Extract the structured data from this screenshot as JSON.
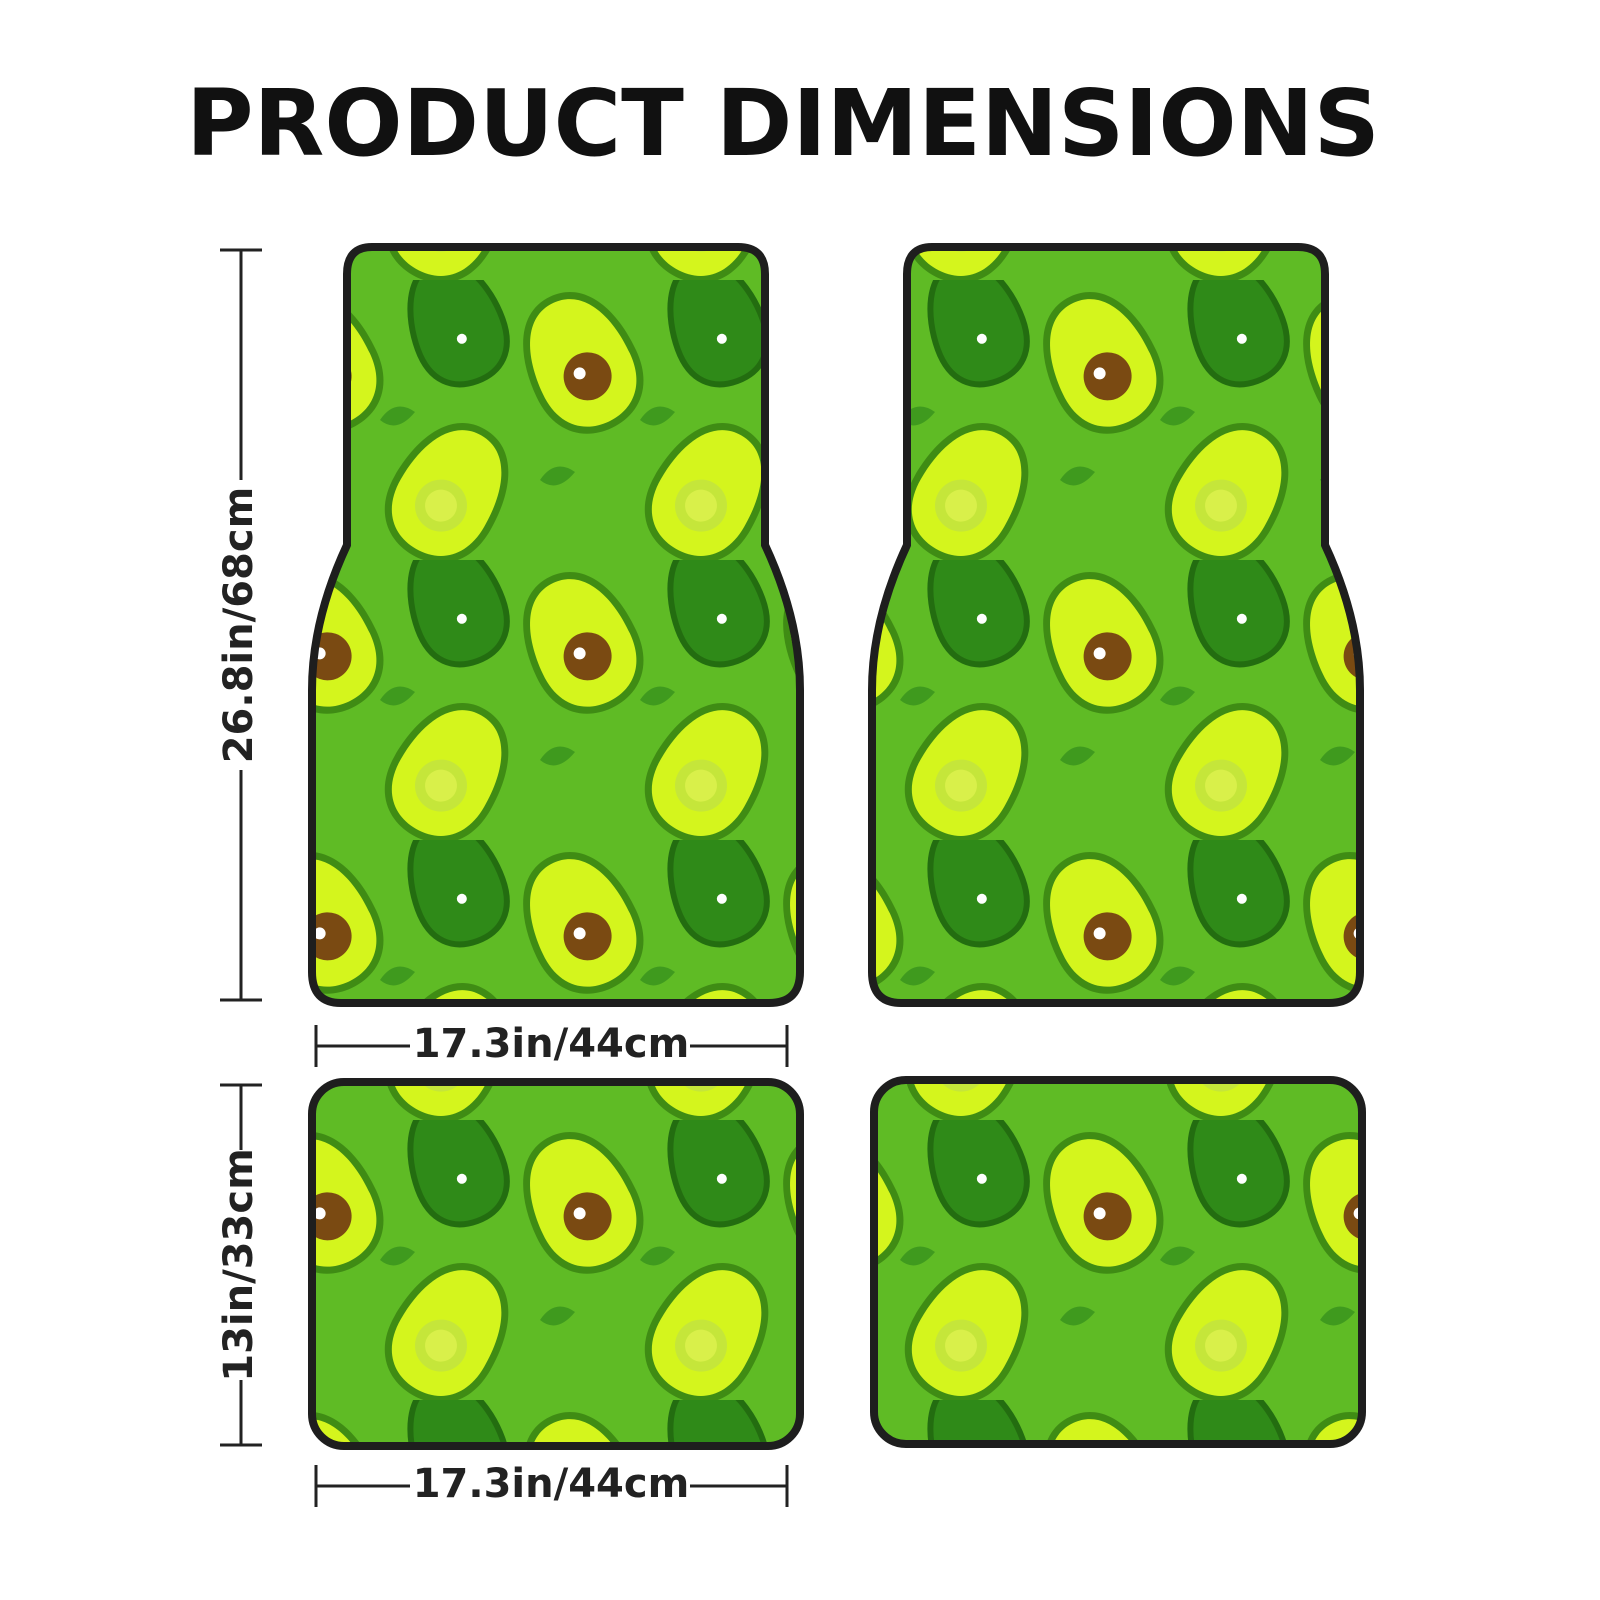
{
  "header": {
    "title": "PRODUCT DIMENSIONS"
  },
  "dimensions": {
    "front": {
      "height": "26.8in/68cm",
      "width": "17.3in/44cm"
    },
    "rear": {
      "height": "13in/33cm",
      "width": "17.3in/44cm"
    }
  }
}
